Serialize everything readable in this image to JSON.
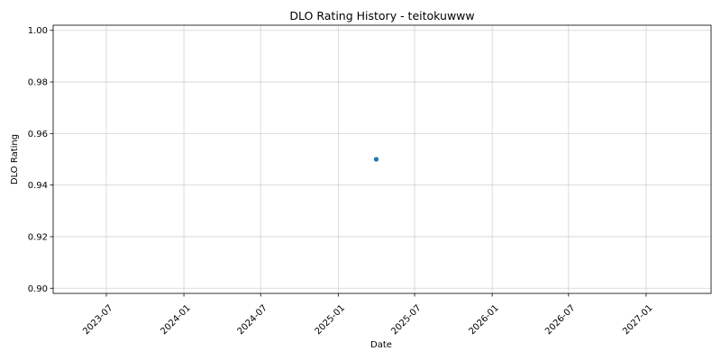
{
  "chart_data": {
    "type": "scatter",
    "title": "DLO Rating History - teitokuwww",
    "xlabel": "Date",
    "ylabel": "DLO Rating",
    "x_axis_type": "date",
    "xlim": [
      "2023-02-25",
      "2027-06-04"
    ],
    "ylim": [
      0.898,
      1.002
    ],
    "x_ticks": [
      "2023-07",
      "2024-01",
      "2024-07",
      "2025-01",
      "2025-07",
      "2026-01",
      "2026-07",
      "2027-01"
    ],
    "y_ticks": [
      0.9,
      0.92,
      0.94,
      0.96,
      0.98,
      1.0
    ],
    "y_tick_labels": [
      "0.90",
      "0.92",
      "0.94",
      "0.96",
      "0.98",
      "1.00"
    ],
    "grid": true,
    "series": [
      {
        "x": [
          "2025-04-01"
        ],
        "y": [
          0.95
        ],
        "color": "#1f77b4"
      }
    ]
  }
}
